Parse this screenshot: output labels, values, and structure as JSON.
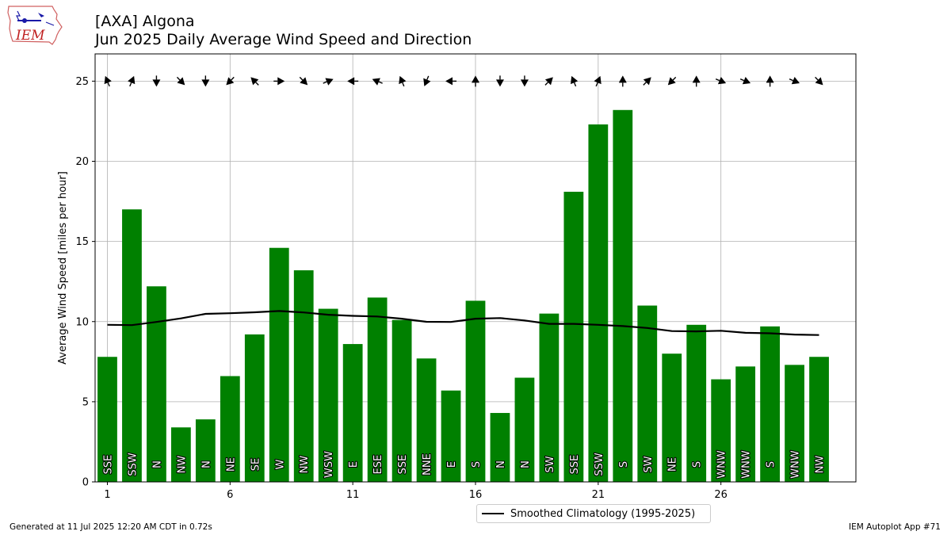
{
  "header": {
    "logo_text": "IEM",
    "title": "[AXA] Algona",
    "subtitle": "Jun 2025 Daily Average Wind Speed and Direction"
  },
  "colors": {
    "bar": "#008000",
    "climatology": "#000000",
    "grid": "#b0b0b0"
  },
  "legend": {
    "label": "Smoothed Climatology (1995-2025)"
  },
  "footer": {
    "generated": "Generated at 11 Jul 2025 12:20 AM CDT in 0.72s",
    "app": "IEM Autoplot App #71"
  },
  "chart_data": {
    "type": "bar",
    "ylabel": "Average Wind Speed [miles per hour]",
    "xlabel": "",
    "xlim": [
      0.5,
      31.5
    ],
    "ylim": [
      0,
      26.7
    ],
    "xticks": [
      1,
      6,
      11,
      16,
      21,
      26
    ],
    "yticks": [
      0,
      5,
      10,
      15,
      20,
      25
    ],
    "grid": true,
    "legend_position": "bottom-center",
    "days": [
      1,
      2,
      3,
      4,
      5,
      6,
      7,
      8,
      9,
      10,
      11,
      12,
      13,
      14,
      15,
      16,
      17,
      18,
      19,
      20,
      21,
      22,
      23,
      24,
      25,
      26,
      27,
      28,
      29,
      30
    ],
    "speed": [
      7.8,
      17.0,
      12.2,
      3.4,
      3.9,
      6.6,
      9.2,
      14.6,
      13.2,
      10.8,
      8.6,
      11.5,
      10.1,
      7.7,
      5.7,
      11.3,
      4.3,
      6.5,
      10.5,
      18.1,
      22.3,
      23.2,
      11.0,
      8.0,
      9.8,
      6.4,
      7.2,
      9.7,
      7.3,
      7.8
    ],
    "direction_labels": [
      "SSE",
      "SSW",
      "N",
      "NW",
      "N",
      "NE",
      "SE",
      "W",
      "NW",
      "WSW",
      "E",
      "ESE",
      "SSE",
      "NNE",
      "E",
      "S",
      "N",
      "N",
      "SW",
      "SSE",
      "SSW",
      "S",
      "SW",
      "NE",
      "S",
      "WNW",
      "WNW",
      "S",
      "WNW",
      "NW"
    ],
    "direction_degrees": [
      157.5,
      202.5,
      0,
      315,
      0,
      45,
      135,
      270,
      315,
      247.5,
      90,
      112.5,
      157.5,
      22.5,
      90,
      180,
      0,
      0,
      225,
      157.5,
      202.5,
      180,
      225,
      45,
      180,
      292.5,
      292.5,
      180,
      292.5,
      315
    ],
    "arrow_level": 25,
    "series": [
      {
        "name": "Smoothed Climatology (1995-2025)",
        "type": "line",
        "values": [
          9.8,
          9.78,
          9.98,
          10.2,
          10.48,
          10.52,
          10.58,
          10.66,
          10.57,
          10.43,
          10.36,
          10.32,
          10.18,
          9.99,
          9.98,
          10.18,
          10.22,
          10.07,
          9.86,
          9.86,
          9.8,
          9.72,
          9.6,
          9.41,
          9.39,
          9.43,
          9.3,
          9.27,
          9.19,
          9.16
        ]
      }
    ]
  }
}
